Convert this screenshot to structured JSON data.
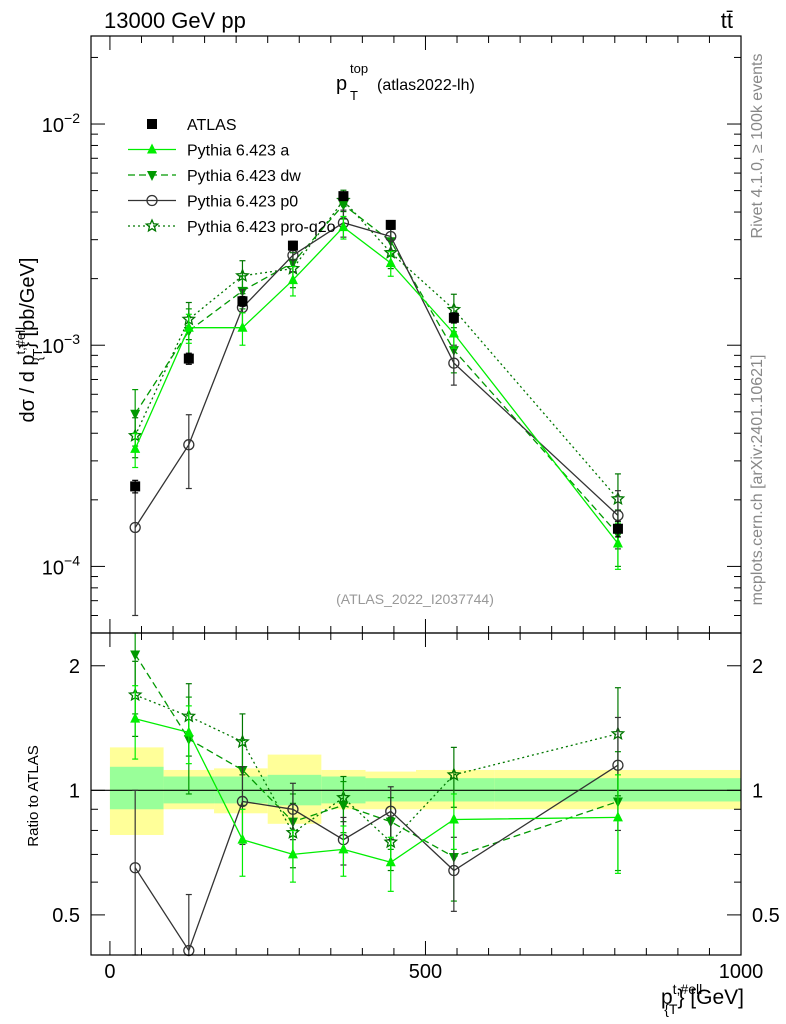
{
  "header": {
    "energy_label": "13000 GeV pp",
    "process_label": "tt̄"
  },
  "side_labels": {
    "rivet": "Rivet 4.1.0, ≥ 100k events",
    "mcplots": "mcplots.cern.ch [arXiv:2401.10621]"
  },
  "watermark": "(ATLAS_2022_I2037744)",
  "colors": {
    "atlas": "#000000",
    "pythia_a": "#00ee00",
    "pythia_dw": "#009900",
    "pythia_p0": "#333333",
    "pythia_proq2o": "#007700",
    "band_inner": "#99ff99",
    "band_outer": "#ffff99"
  },
  "chart_data": [
    {
      "type": "scatter",
      "panel": "main",
      "title_main": "p",
      "title_sup": "top",
      "title_sub": "T",
      "title_tag": "(atlas2022-lh)",
      "ylabel": "dσ / d p_{T}^{t,#ell} [pb/GeV]",
      "ylabel_parts": {
        "pre": "dσ / d p",
        "sup": "t,#ell",
        "sub": "{T",
        "post": "} [pb/GeV]"
      },
      "yscale": "log",
      "ylim": [
        5e-05,
        0.025
      ],
      "xlim": [
        -30,
        1000
      ],
      "y_tick_labels": [
        {
          "value": 0.0001,
          "base": "10",
          "exp": "−4"
        },
        {
          "value": 0.001,
          "base": "10",
          "exp": "−3"
        },
        {
          "value": 0.01,
          "base": "10",
          "exp": "−2"
        }
      ],
      "legend_position": "top-left",
      "x": [
        40,
        125,
        210,
        290,
        370,
        445,
        545,
        805
      ],
      "series": [
        {
          "name": "ATLAS",
          "key": "atlas",
          "style": "data",
          "marker": "square-filled",
          "values": [
            0.00023,
            0.00087,
            0.00158,
            0.00282,
            0.00472,
            0.0035,
            0.00133,
            0.000148
          ],
          "yerr": [
            1.5e-05,
            5e-05,
            8e-05,
            0.00012,
            0.0002,
            0.00016,
            7e-05,
            1.2e-05
          ]
        },
        {
          "name": "Pythia 6.423 a",
          "key": "pythia_a",
          "line": "solid",
          "marker": "triangle-up-filled",
          "values": [
            0.00034,
            0.0012,
            0.0012,
            0.00197,
            0.00342,
            0.00235,
            0.00113,
            0.000127
          ],
          "yerr": [
            6e-05,
            0.00018,
            0.0002,
            0.0003,
            0.0004,
            0.0003,
            0.00016,
            3e-05
          ]
        },
        {
          "name": "Pythia 6.423 dw",
          "key": "pythia_dw",
          "line": "dashed",
          "marker": "triangle-down-filled",
          "values": [
            0.00049,
            0.00116,
            0.00176,
            0.00236,
            0.00432,
            0.00295,
            0.00095,
            0.00014
          ],
          "yerr": [
            0.00014,
            0.0003,
            0.0003,
            0.0004,
            0.0006,
            0.0004,
            0.0002,
            4e-05
          ]
        },
        {
          "name": "Pythia 6.423 p0",
          "key": "pythia_p0",
          "line": "solid",
          "marker": "circle-open",
          "values": [
            0.00015,
            0.000355,
            0.00148,
            0.00255,
            0.00358,
            0.0031,
            0.00083,
            0.00017
          ],
          "yerr": [
            9e-05,
            0.00013,
            0.0003,
            0.0004,
            0.0005,
            0.00045,
            0.00017,
            5e-05
          ]
        },
        {
          "name": "Pythia 6.423 pro-q2o",
          "key": "pythia_proq2o",
          "line": "dotted",
          "marker": "star-open",
          "values": [
            0.00039,
            0.00131,
            0.00206,
            0.00222,
            0.00452,
            0.00262,
            0.00145,
            0.000202
          ],
          "yerr": [
            8e-05,
            0.00025,
            0.00035,
            0.0004,
            0.0005,
            0.0004,
            0.00025,
            6e-05
          ]
        }
      ]
    },
    {
      "type": "scatter",
      "panel": "ratio",
      "ylabel": "Ratio to ATLAS",
      "yscale": "log",
      "ylim": [
        0.4,
        2.4
      ],
      "xlim": [
        -30,
        1000
      ],
      "y_tick_labels": [
        "0.5",
        "1",
        "2"
      ],
      "y_ticks": [
        0.5,
        1,
        2
      ],
      "x_tick_labels": [
        "0",
        "500",
        "1000"
      ],
      "x_ticks": [
        0,
        500,
        1000
      ],
      "xlabel_parts": {
        "pre": "p",
        "sup": "t,#ell",
        "sub": "{T",
        "post": "} [GeV]"
      },
      "bins": [
        0,
        85,
        165,
        250,
        335,
        405,
        485,
        610,
        1000
      ],
      "band_inner": [
        [
          0.9,
          1.14
        ],
        [
          0.93,
          1.08
        ],
        [
          0.93,
          1.08
        ],
        [
          0.92,
          1.09
        ],
        [
          0.93,
          1.08
        ],
        [
          0.94,
          1.07
        ],
        [
          0.94,
          1.07
        ],
        [
          0.94,
          1.07
        ]
      ],
      "band_outer": [
        [
          0.78,
          1.27
        ],
        [
          0.9,
          1.12
        ],
        [
          0.88,
          1.13
        ],
        [
          0.83,
          1.22
        ],
        [
          0.9,
          1.12
        ],
        [
          0.9,
          1.11
        ],
        [
          0.9,
          1.12
        ],
        [
          0.9,
          1.12
        ]
      ],
      "x": [
        40,
        125,
        210,
        290,
        370,
        445,
        545,
        805
      ],
      "series": [
        {
          "key": "pythia_a",
          "line": "solid",
          "marker": "triangle-up-filled",
          "values": [
            1.49,
            1.38,
            0.76,
            0.7,
            0.72,
            0.67,
            0.85,
            0.86
          ],
          "yerr": [
            0.3,
            0.22,
            0.14,
            0.1,
            0.1,
            0.1,
            0.13,
            0.23
          ]
        },
        {
          "key": "pythia_dw",
          "line": "dashed",
          "marker": "triangle-down-filled",
          "values": [
            2.13,
            1.33,
            1.12,
            0.84,
            0.92,
            0.84,
            0.69,
            0.94
          ],
          "yerr": [
            0.6,
            0.35,
            0.2,
            0.14,
            0.13,
            0.12,
            0.15,
            0.3
          ]
        },
        {
          "key": "pythia_p0",
          "line": "solid",
          "marker": "circle-open",
          "values": [
            0.65,
            0.41,
            0.94,
            0.9,
            0.76,
            0.89,
            0.64,
            1.15
          ],
          "yerr": [
            0.35,
            0.15,
            0.2,
            0.14,
            0.1,
            0.13,
            0.13,
            0.35
          ]
        },
        {
          "key": "pythia_proq2o",
          "line": "dotted",
          "marker": "star-open",
          "values": [
            1.7,
            1.51,
            1.31,
            0.79,
            0.96,
            0.75,
            1.09,
            1.37
          ],
          "yerr": [
            0.35,
            0.3,
            0.22,
            0.14,
            0.12,
            0.11,
            0.18,
            0.4
          ]
        }
      ]
    }
  ]
}
